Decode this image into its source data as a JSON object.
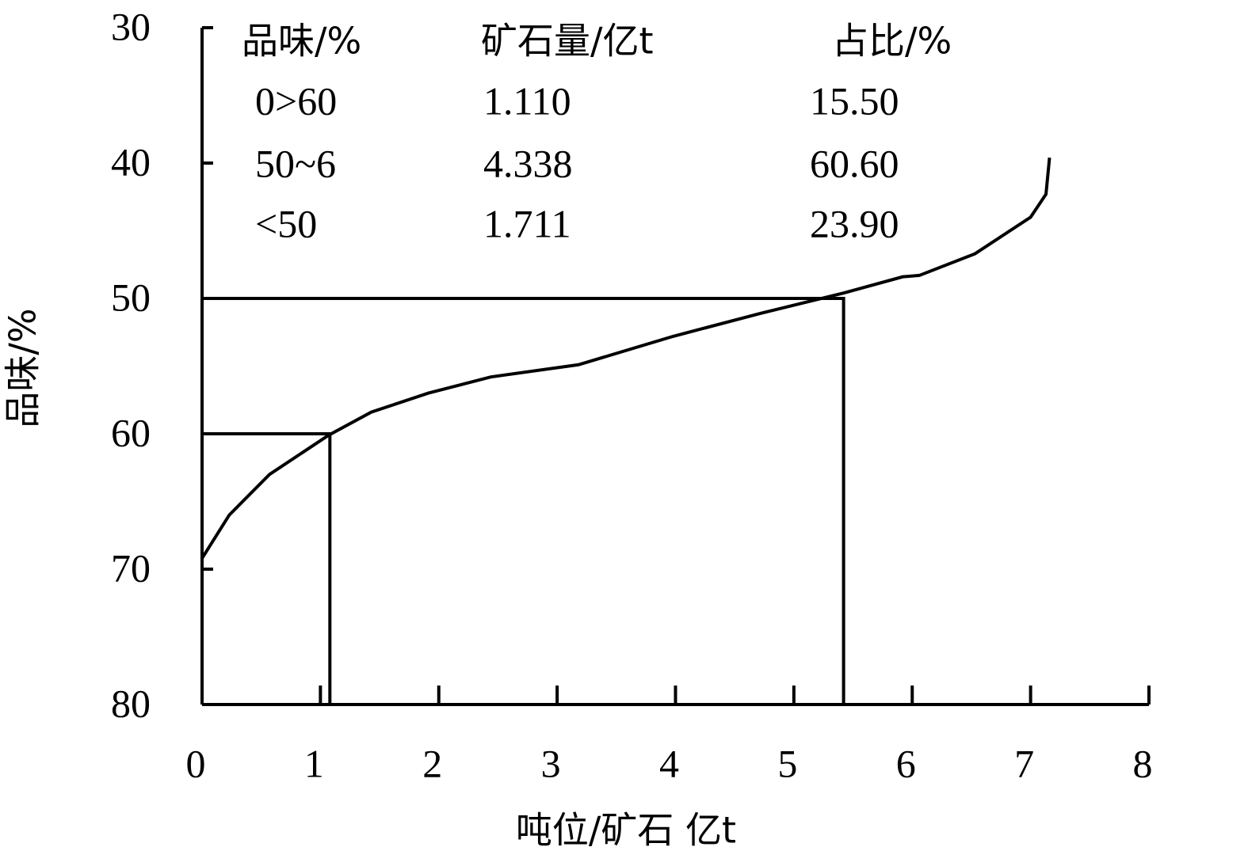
{
  "chart_data": {
    "type": "line",
    "xlabel": "吨位/矿石 亿t",
    "ylabel": "品味/%",
    "x": [
      0,
      0.23,
      0.57,
      1.07,
      1.43,
      1.91,
      2.44,
      3.18,
      3.98,
      4.72,
      5.42,
      5.92,
      6.06,
      6.53,
      7.0,
      7.13,
      7.16
    ],
    "values": [
      69.2,
      66.0,
      63.0,
      60.1,
      58.4,
      57.0,
      55.8,
      54.9,
      52.8,
      51.1,
      49.6,
      48.4,
      48.3,
      46.7,
      44.0,
      42.3,
      39.6
    ],
    "color": "#000000",
    "xlim": [
      0,
      8
    ],
    "xticks": [
      0,
      1,
      2,
      3,
      4,
      5,
      6,
      7,
      8
    ],
    "ylim": [
      80,
      30
    ],
    "yticks": [
      30,
      40,
      50,
      60,
      70,
      80
    ],
    "reference_lines": [
      {
        "x": 1.08,
        "y": 60
      },
      {
        "x": 5.42,
        "y": 50
      }
    ],
    "table": {
      "columns": [
        "品味/%",
        "矿石量/亿t",
        "占比/%"
      ],
      "rows": [
        [
          "0>60",
          "1.110",
          "15.50"
        ],
        [
          "50~6",
          "4.338",
          "60.60"
        ],
        [
          "<50",
          "1.711",
          "23.90"
        ]
      ]
    }
  }
}
